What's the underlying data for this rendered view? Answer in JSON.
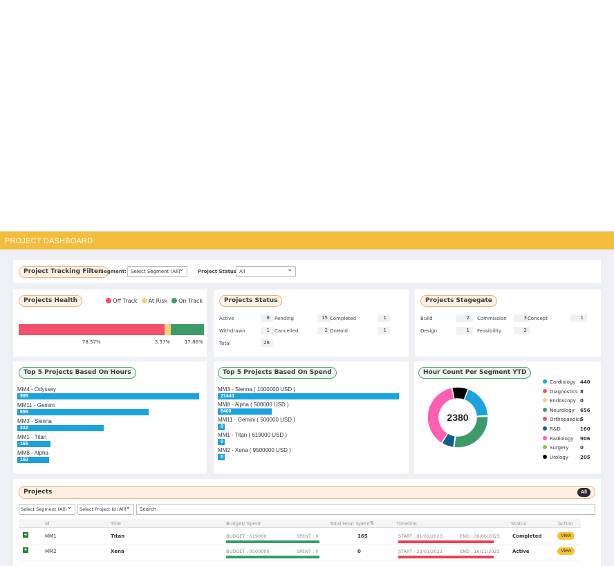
{
  "header": {
    "title": "PROJECT DASHBOARD"
  },
  "filter": {
    "label": "Project Tracking Filter:",
    "segment_label": "Segment:",
    "segment_value": "Select Segment (All)",
    "status_label": "Project Status:",
    "status_value": "All"
  },
  "health": {
    "title": "Projects Health",
    "legend": [
      {
        "name": "Off Track",
        "color": "#f2506c"
      },
      {
        "name": "At Risk",
        "color": "#f6cf7a"
      },
      {
        "name": "On Track",
        "color": "#3d9b69"
      }
    ],
    "segments": [
      {
        "label": "78.57%",
        "value": 78.57,
        "color": "#f2506c"
      },
      {
        "label": "3.57%",
        "value": 3.57,
        "color": "#f6cf7a"
      },
      {
        "label": "17.86%",
        "value": 17.86,
        "color": "#3d9b69"
      }
    ]
  },
  "status": {
    "title": "Projects Status",
    "items": [
      {
        "label": "Active",
        "value": "8"
      },
      {
        "label": "Pending",
        "value": "15"
      },
      {
        "label": "Completed",
        "value": "1"
      },
      {
        "label": "Withdrawn",
        "value": "1"
      },
      {
        "label": "Cancelled",
        "value": "2"
      },
      {
        "label": "OnHold",
        "value": "1"
      },
      {
        "label": "Total",
        "value": "28"
      }
    ]
  },
  "stagegate": {
    "title": "Projects Stagegate",
    "items": [
      {
        "label": "Build",
        "value": "2"
      },
      {
        "label": "Commission",
        "value": "3"
      },
      {
        "label": "Concept",
        "value": "1"
      },
      {
        "label": "Design",
        "value": "1"
      },
      {
        "label": "Feasibility",
        "value": "2"
      }
    ]
  },
  "top_hours": {
    "title": "Top 5 Projects Based On Hours",
    "max": 906,
    "items": [
      {
        "label": "MM4 - Odyssey",
        "value": 906,
        "text": "906"
      },
      {
        "label": "MM11 - Gemini",
        "value": 656,
        "text": "656"
      },
      {
        "label": "MM3 - Sienna",
        "value": 432,
        "text": "432"
      },
      {
        "label": "MM1 - Titan",
        "value": 165,
        "text": "165"
      },
      {
        "label": "MM8 - Alpha",
        "value": 160,
        "text": "160"
      }
    ]
  },
  "top_spend": {
    "title": "Top 5 Projects Based On Spend",
    "max": 21440,
    "items": [
      {
        "label": "MM3 - Sienna ( 1000000 USD )",
        "value": 21440,
        "text": "21440"
      },
      {
        "label": "MM8 - Alpha ( 500000 USD )",
        "value": 6400,
        "text": "6400"
      },
      {
        "label": "MM11 - Gemini ( 500000 USD )",
        "value": 0,
        "text": "0"
      },
      {
        "label": "MM1 - Titan ( 619000 USD )",
        "value": 0,
        "text": "0"
      },
      {
        "label": "MM2 - Xena ( 9500000 USD )",
        "value": 0,
        "text": "0"
      }
    ]
  },
  "hour_segment": {
    "title": "Hour Count Per Segment YTD",
    "total": "2380",
    "legend": [
      {
        "name": "Cardiology",
        "value": "440",
        "color": "#1aa3dc"
      },
      {
        "name": "Diagnostics",
        "value": "8",
        "color": "#f2545b"
      },
      {
        "name": "Endoscopy",
        "value": "0",
        "color": "#f6cf7a"
      },
      {
        "name": "Neurology",
        "value": "656",
        "color": "#3d9b69"
      },
      {
        "name": "Orthopaedics",
        "value": "5",
        "color": "#f2506c"
      },
      {
        "name": "R&D",
        "value": "160",
        "color": "#0b5f8f"
      },
      {
        "name": "Radiology",
        "value": "906",
        "color": "#ff5fb0"
      },
      {
        "name": "Surgery",
        "value": "0",
        "color": "#8cc63f"
      },
      {
        "name": "Urology",
        "value": "205",
        "color": "#000000"
      }
    ]
  },
  "projects": {
    "title": "Projects",
    "all_badge": "All",
    "segment_select": "Select Segment (All)",
    "id_select": "Select Project Id (All)",
    "search_placeholder": "Search",
    "columns": [
      "Id",
      "Title",
      "Budget/ Spent",
      "Total Hour Spent",
      "Timeline",
      "Status",
      "Action"
    ],
    "sort_icon": "⇅",
    "rows": [
      {
        "id": "MM1",
        "title": "Titan",
        "budget": "BUDGET : 619000",
        "spent": "SPENT : 0",
        "hours": "165",
        "start": "START : 01/01/2023",
        "end": "END : 30/06/2023",
        "status": "Completed",
        "action": "View",
        "budget_color": "#2e9e6a",
        "timeline_color": "#f03e4f"
      },
      {
        "id": "MM2",
        "title": "Xena",
        "budget": "BUDGET : 9500000",
        "spent": "SPENT : 0",
        "hours": "0",
        "start": "START : 23/03/2023",
        "end": "END : 16/11/2023",
        "status": "Active",
        "action": "View",
        "budget_color": "#2e9e6a",
        "timeline_color": "#f03e4f"
      }
    ]
  }
}
